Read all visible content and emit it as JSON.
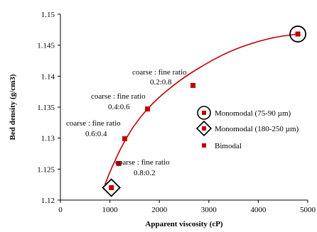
{
  "chart_data": {
    "type": "scatter",
    "xlabel": "Apparent viscosity (cP)",
    "ylabel": "Bed density (g/cm3)",
    "xlim": [
      0,
      5000
    ],
    "ylim": [
      1.12,
      1.15
    ],
    "x_ticks": [
      "0",
      "1000",
      "2000",
      "3000",
      "4000",
      "5000"
    ],
    "y_ticks": [
      "1.12",
      "1.125",
      "1.13",
      "1.135",
      "1.14",
      "1.145",
      "1.15"
    ],
    "grid": false,
    "series": [
      {
        "name": "Bimodal",
        "color": "#c00000",
        "x": [
          1030,
          1180,
          1300,
          1760,
          2680,
          4800
        ],
        "y": [
          1.122,
          1.1259,
          1.1299,
          1.1347,
          1.1385,
          1.1468
        ]
      }
    ],
    "fit_curve": {
      "color": "#c00000",
      "x": [
        900,
        1000,
        1100,
        1200,
        1350,
        1500,
        1750,
        2000,
        2400,
        2800,
        3300,
        3800,
        4300,
        4800
      ],
      "y": [
        1.1225,
        1.1245,
        1.1263,
        1.128,
        1.1302,
        1.1321,
        1.1346,
        1.1366,
        1.1392,
        1.1413,
        1.1435,
        1.1451,
        1.1462,
        1.1468
      ]
    },
    "highlighted_points": [
      {
        "x": 4800,
        "y": 1.1468,
        "marker": "circle"
      },
      {
        "x": 1030,
        "y": 1.122,
        "marker": "diamond"
      }
    ],
    "annotations": [
      {
        "line1": "coarse : fine ratio",
        "line2": "0.2:0.8"
      },
      {
        "line1": "coarse : fine ratio",
        "line2": "0.4:0.6"
      },
      {
        "line1": "coarse : fine ratio",
        "line2": "0.6:0.4"
      },
      {
        "line1": "coarse : fine ratio",
        "line2": "0.8:0.2"
      }
    ],
    "legend": {
      "placement": "right",
      "items": [
        {
          "label": "Monomodal (75-90 µm)",
          "marker": "circle"
        },
        {
          "label": "Monomodal (180-250 µm)",
          "marker": "diamond"
        },
        {
          "label": "Bimodal",
          "marker": "square"
        }
      ]
    }
  }
}
